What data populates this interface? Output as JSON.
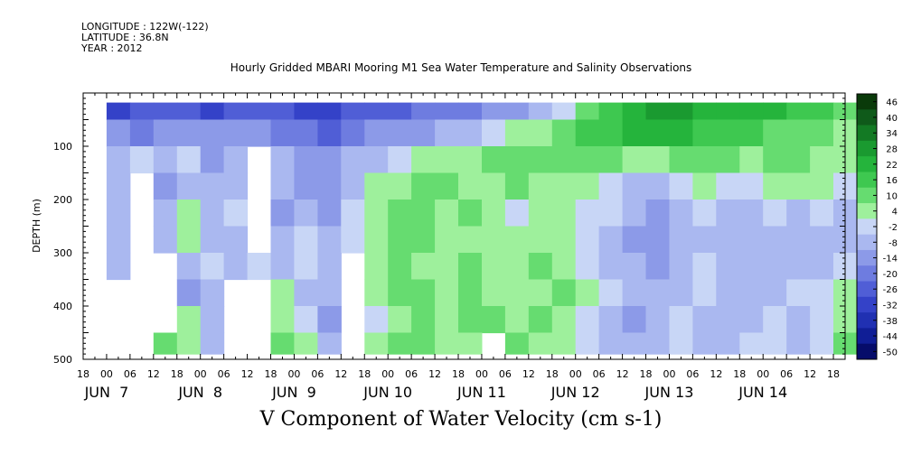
{
  "header": {
    "longitude": "LONGITUDE : 122W(-122)",
    "latitude": "LATITUDE : 36.8N",
    "year": "YEAR : 2012"
  },
  "chart_data": {
    "type": "heatmap",
    "title": "Hourly Gridded MBARI Mooring M1 Sea Water Temperature and Salinity Observations",
    "xlabel": "V Component of Water Velocity (cm s-1)",
    "ylabel": "DEPTH (m)",
    "ylim": [
      500,
      0
    ],
    "y_ticks": [
      100,
      200,
      300,
      400,
      500
    ],
    "x_hour_ticks": [
      "18",
      "00",
      "06",
      "12",
      "18",
      "00",
      "06",
      "12",
      "18",
      "00",
      "06",
      "12",
      "18",
      "00",
      "06",
      "12",
      "18",
      "00",
      "06",
      "12",
      "18",
      "00",
      "06",
      "12",
      "18",
      "00",
      "06",
      "12",
      "18",
      "00",
      "06",
      "12",
      "18"
    ],
    "x_day_labels": [
      "JUN  7",
      "JUN  8",
      "JUN  9",
      "JUN 10",
      "JUN 11",
      "JUN 12",
      "JUN 13",
      "JUN 14"
    ],
    "colorbar": {
      "labels": [
        "46",
        "40",
        "34",
        "28",
        "22",
        "16",
        "10",
        "4",
        "-2",
        "-8",
        "-14",
        "-20",
        "-26",
        "-32",
        "-38",
        "-44",
        "-50"
      ],
      "colors": [
        "#0a3a0a",
        "#0f5a1a",
        "#137a24",
        "#1a9a30",
        "#25b43c",
        "#3ec850",
        "#66dc70",
        "#9ef09c",
        "#c8d6f6",
        "#aab8f0",
        "#8c9ae8",
        "#6e7ce0",
        "#505ed6",
        "#3442c8",
        "#2030b2",
        "#101e96",
        "#060c6a"
      ]
    },
    "rows_depth_m": [
      25,
      75,
      125,
      175,
      225,
      275,
      325,
      375,
      425,
      475
    ],
    "columns_day": [
      7.125,
      7.375,
      7.625,
      7.875,
      8.125,
      8.375,
      8.625,
      8.875,
      9.125,
      9.375,
      9.625,
      9.875,
      10.125,
      10.375,
      10.625,
      10.875,
      11.125,
      11.375,
      11.625,
      11.875,
      12.125,
      12.375,
      12.625,
      12.875,
      13.125,
      13.375,
      13.625,
      13.875,
      14.125,
      14.375,
      14.625,
      14.875
    ],
    "values": [
      [
        -28,
        -24,
        -26,
        -24,
        -30,
        -26,
        -22,
        -24,
        -28,
        -30,
        -26,
        -24,
        -22,
        -20,
        -18,
        -16,
        -14,
        -10,
        -6,
        -2,
        12,
        20,
        26,
        30,
        28,
        24,
        22,
        26,
        22,
        18,
        16,
        14
      ],
      [
        -10,
        -16,
        -14,
        -12,
        -14,
        -10,
        -14,
        -16,
        -20,
        -22,
        -18,
        -14,
        -12,
        -10,
        -8,
        -6,
        -2,
        4,
        8,
        12,
        16,
        20,
        22,
        24,
        22,
        20,
        18,
        16,
        14,
        12,
        10,
        8
      ],
      [
        -4,
        2,
        -8,
        -2,
        -10,
        -6,
        null,
        -6,
        -14,
        -12,
        -8,
        -4,
        2,
        4,
        6,
        8,
        10,
        12,
        10,
        14,
        14,
        10,
        8,
        6,
        10,
        12,
        10,
        8,
        12,
        10,
        8,
        4
      ],
      [
        -6,
        null,
        -10,
        -4,
        -8,
        -4,
        null,
        -8,
        -10,
        -12,
        -6,
        4,
        8,
        10,
        12,
        8,
        6,
        10,
        6,
        8,
        6,
        2,
        -4,
        -6,
        -2,
        4,
        2,
        -2,
        4,
        6,
        8,
        2
      ],
      [
        -8,
        null,
        -4,
        6,
        -6,
        -2,
        null,
        -10,
        -8,
        -10,
        -2,
        6,
        10,
        12,
        8,
        10,
        4,
        2,
        4,
        6,
        2,
        -2,
        -8,
        -10,
        -6,
        -2,
        -4,
        -6,
        -2,
        -4,
        -2,
        -6
      ],
      [
        -6,
        null,
        -8,
        4,
        -4,
        -6,
        null,
        -4,
        -2,
        -8,
        2,
        8,
        12,
        10,
        6,
        8,
        6,
        4,
        8,
        6,
        2,
        -6,
        -10,
        -12,
        -8,
        -4,
        -6,
        -8,
        -8,
        -6,
        -4,
        -6
      ],
      [
        -4,
        null,
        null,
        -6,
        -2,
        -4,
        -2,
        -8,
        -2,
        -6,
        null,
        6,
        10,
        8,
        8,
        12,
        8,
        6,
        10,
        8,
        2,
        -4,
        -8,
        -10,
        -6,
        -2,
        -4,
        -6,
        -4,
        -6,
        -4,
        -2
      ],
      [
        null,
        null,
        null,
        -10,
        -6,
        null,
        null,
        4,
        -4,
        -8,
        null,
        4,
        12,
        10,
        6,
        10,
        8,
        4,
        8,
        10,
        4,
        -2,
        -6,
        -8,
        -4,
        -2,
        -6,
        -4,
        -6,
        -2,
        2,
        4
      ],
      [
        null,
        null,
        null,
        4,
        -6,
        null,
        null,
        8,
        2,
        -10,
        null,
        2,
        8,
        12,
        6,
        10,
        10,
        6,
        12,
        8,
        2,
        -6,
        -10,
        -8,
        -2,
        -6,
        -8,
        -6,
        -2,
        -4,
        -2,
        6
      ],
      [
        null,
        null,
        10,
        8,
        -4,
        null,
        null,
        12,
        4,
        -6,
        null,
        8,
        10,
        12,
        8,
        6,
        null,
        10,
        8,
        6,
        2,
        -4,
        -6,
        -4,
        0,
        -6,
        -4,
        -2,
        0,
        -4,
        2,
        10
      ]
    ]
  }
}
